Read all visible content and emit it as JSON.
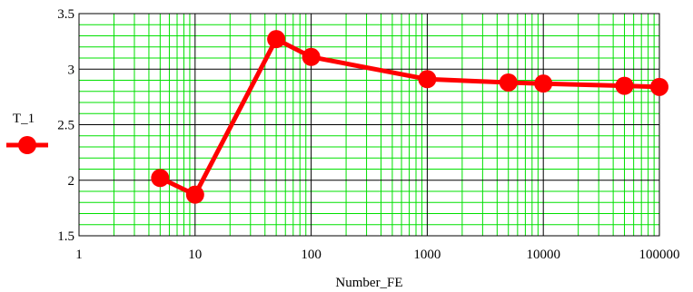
{
  "chart_data": {
    "type": "line",
    "xlabel": "Number_FE",
    "ylabel": "",
    "x_scale": "log",
    "xlim": [
      1,
      100000
    ],
    "ylim": [
      1.5,
      3.5
    ],
    "x_ticks": [
      "1",
      "10",
      "100",
      "1000",
      "10000",
      "100000"
    ],
    "y_ticks": [
      "1.5",
      "2",
      "2.5",
      "3",
      "3.5"
    ],
    "grid": true,
    "legend_position": "left",
    "series": [
      {
        "name": "T_1",
        "color": "#ff0000",
        "marker": "circle",
        "x": [
          5,
          10,
          50,
          100,
          1000,
          5000,
          10000,
          50000,
          100000
        ],
        "y": [
          2.02,
          1.87,
          3.27,
          3.11,
          2.91,
          2.88,
          2.87,
          2.85,
          2.84
        ]
      }
    ]
  }
}
